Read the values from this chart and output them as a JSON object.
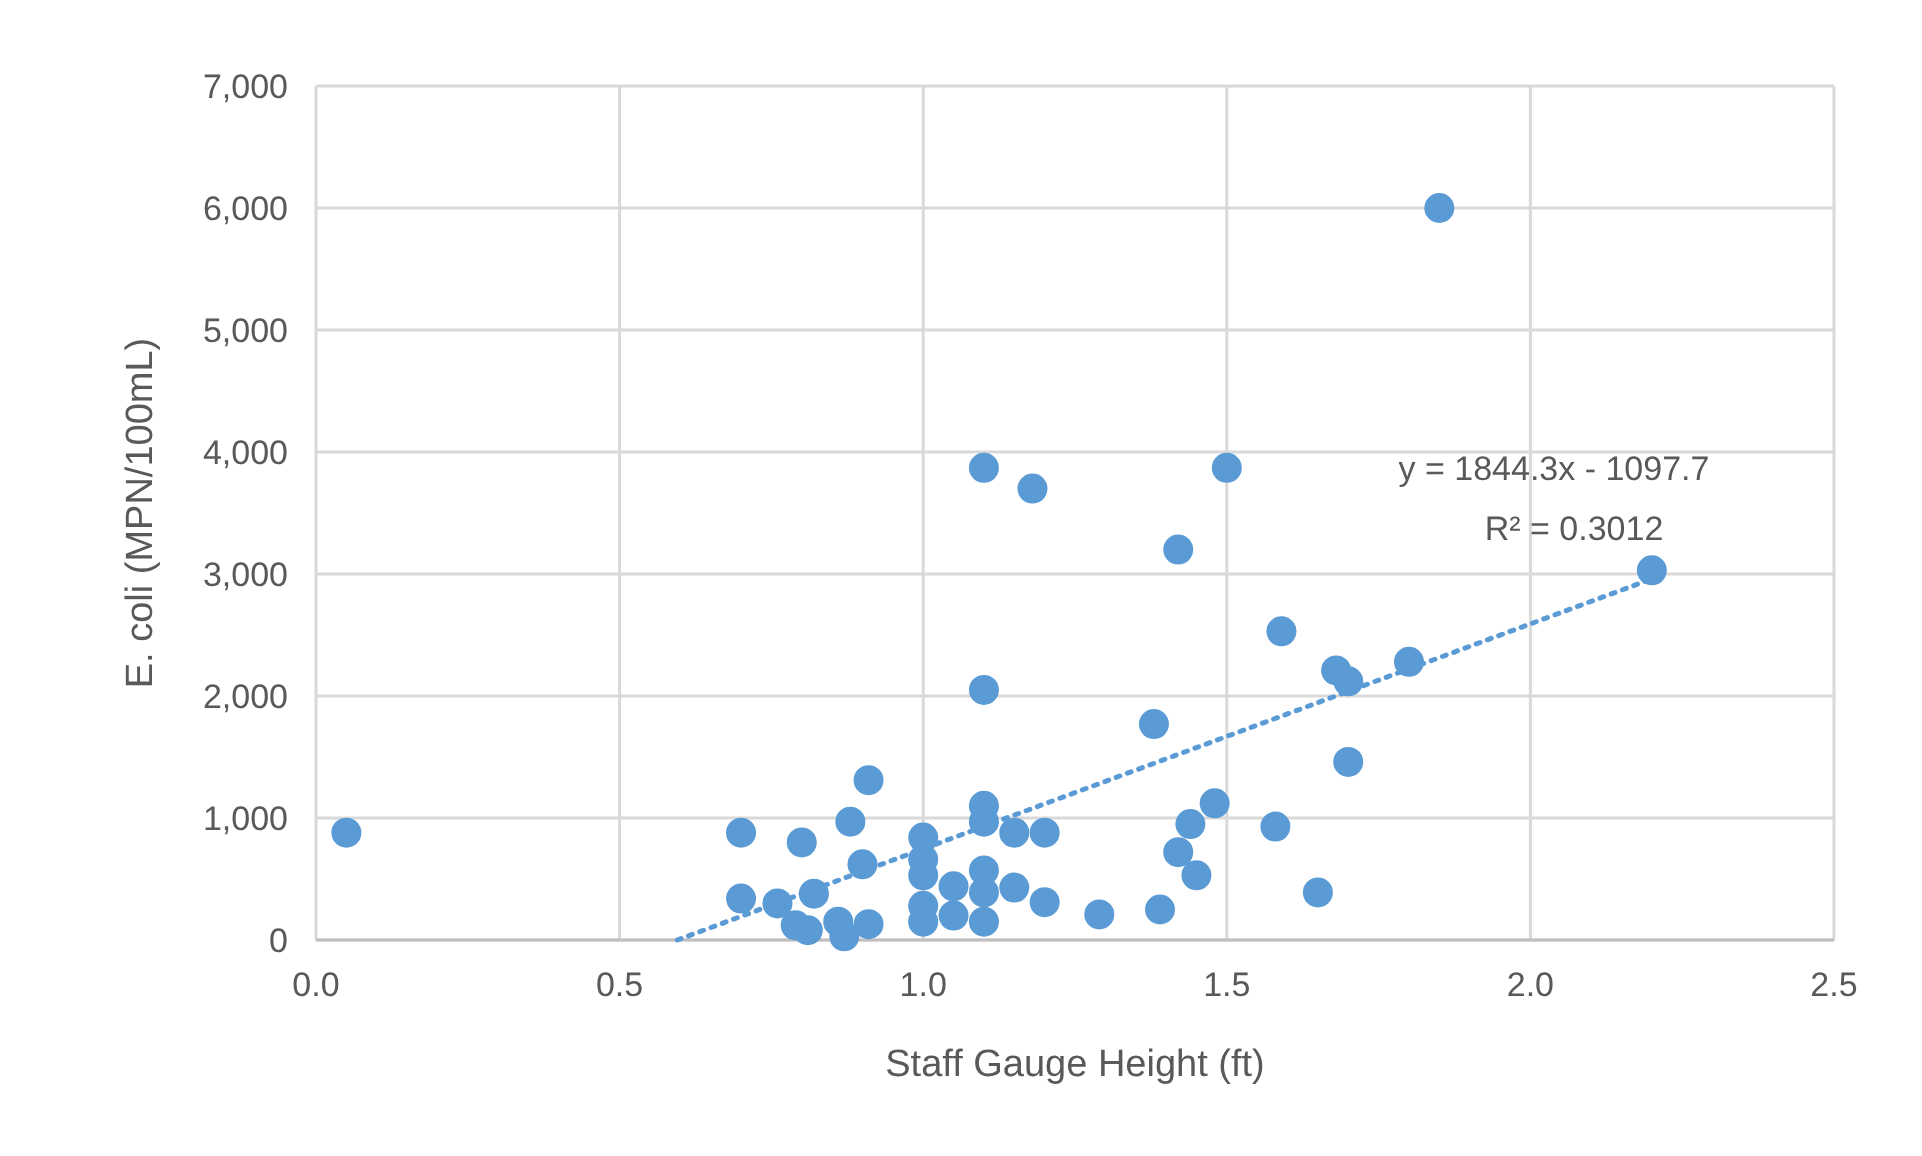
{
  "chart_data": {
    "type": "scatter",
    "xlabel": "Staff Gauge Height (ft)",
    "ylabel": "E. coli (MPN/100mL)",
    "xlim": [
      0,
      2.5
    ],
    "xticks": [
      {
        "value": 0,
        "label": "0.0"
      },
      0.5,
      {
        "value": 1,
        "label": "1.0"
      },
      1.5,
      {
        "value": 2,
        "label": "2.0"
      },
      2.5
    ],
    "ylim": [
      0,
      7000
    ],
    "yticks": [
      0,
      {
        "value": 1000,
        "label": "1,000"
      },
      {
        "value": 2000,
        "label": "2,000"
      },
      {
        "value": 3000,
        "label": "3,000"
      },
      {
        "value": 4000,
        "label": "4,000"
      },
      {
        "value": 5000,
        "label": "5,000"
      },
      {
        "value": 6000,
        "label": "6,000"
      },
      {
        "value": 7000,
        "label": "7,000"
      }
    ],
    "grid": true,
    "series": [
      {
        "color": "#5b9bd5",
        "marker": "circle",
        "x": [
          0.05,
          0.7,
          0.7,
          0.76,
          0.8,
          0.82,
          0.79,
          0.81,
          0.86,
          0.87,
          0.91,
          0.88,
          0.9,
          0.91,
          1.0,
          1.0,
          1.0,
          1.0,
          1.0,
          1.05,
          1.05,
          1.1,
          1.1,
          1.1,
          1.1,
          1.1,
          1.1,
          1.1,
          1.15,
          1.15,
          1.2,
          1.2,
          1.18,
          1.29,
          1.39,
          1.38,
          1.42,
          1.42,
          1.44,
          1.45,
          1.48,
          1.5,
          1.58,
          1.59,
          1.65,
          1.68,
          1.7,
          1.7,
          1.8,
          1.85,
          2.2
        ],
        "values": [
          880,
          880,
          340,
          300,
          800,
          380,
          120,
          80,
          150,
          30,
          1310,
          970,
          620,
          130,
          840,
          660,
          530,
          280,
          150,
          440,
          200,
          1100,
          970,
          570,
          390,
          150,
          2050,
          3870,
          880,
          430,
          880,
          310,
          3700,
          210,
          250,
          1770,
          3200,
          720,
          950,
          530,
          1120,
          3870,
          930,
          2530,
          390,
          2210,
          2120,
          1460,
          2280,
          6000,
          3030
        ]
      },
      {
        "type": "line",
        "color": "#5b9bd5",
        "line_style": "dotted",
        "x": [
          0.595,
          2.2
        ],
        "values": [
          0,
          2960
        ]
      }
    ],
    "annotations": [
      "y = 1844.3x - 1097.7",
      "R² = 0.3012"
    ]
  }
}
